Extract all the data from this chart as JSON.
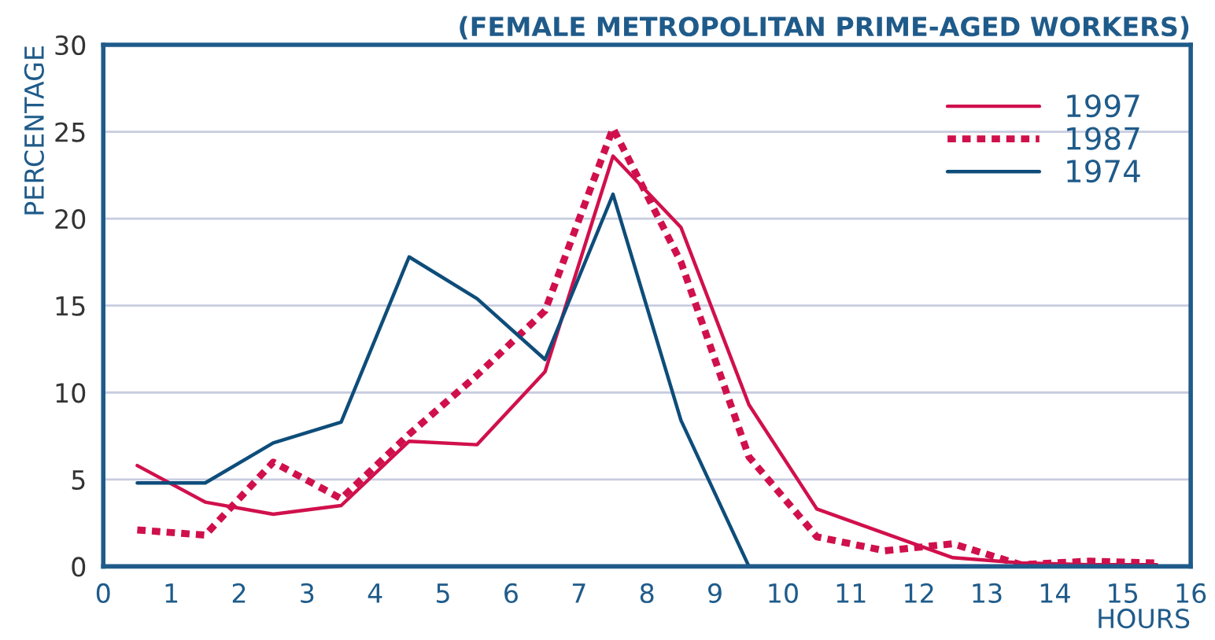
{
  "chart_data": {
    "type": "line",
    "title": "(FEMALE METROPOLITAN PRIME-AGED WORKERS)",
    "xlabel": "HOURS",
    "ylabel": "PERCENTAGE",
    "x": [
      0.5,
      1.5,
      2.5,
      3.5,
      4.5,
      5.5,
      6.5,
      7.5,
      8.5,
      9.5,
      10.5,
      11.5,
      12.5,
      13.5,
      14.5,
      15.5
    ],
    "series": [
      {
        "name": "1997",
        "color": "#d0104c",
        "line_style": "solid",
        "values": [
          5.8,
          3.7,
          3.0,
          3.5,
          7.2,
          7.0,
          11.2,
          23.6,
          19.5,
          9.3,
          3.3,
          1.9,
          0.5,
          0.2,
          0.1,
          0.1
        ]
      },
      {
        "name": "1987",
        "color": "#d0104c",
        "line_style": "dotted",
        "values": [
          2.1,
          1.8,
          6.0,
          3.9,
          7.6,
          11.0,
          14.7,
          25.2,
          17.5,
          6.3,
          1.7,
          0.9,
          1.3,
          0.1,
          0.3,
          0.2
        ]
      },
      {
        "name": "1974",
        "color": "#0e4d7a",
        "line_style": "solid",
        "values": [
          4.8,
          4.8,
          7.1,
          8.3,
          17.8,
          15.4,
          11.9,
          21.4,
          8.4,
          0,
          null,
          null,
          null,
          null,
          null,
          null
        ]
      }
    ],
    "xlim": [
      0,
      16
    ],
    "ylim": [
      0,
      30
    ],
    "xticks": [
      0,
      1,
      2,
      3,
      4,
      5,
      6,
      7,
      8,
      9,
      10,
      11,
      12,
      13,
      14,
      15,
      16
    ],
    "yticks": [
      0,
      5,
      10,
      15,
      20,
      25,
      30
    ],
    "grid": "y",
    "legend": "top right",
    "marker": "none"
  }
}
